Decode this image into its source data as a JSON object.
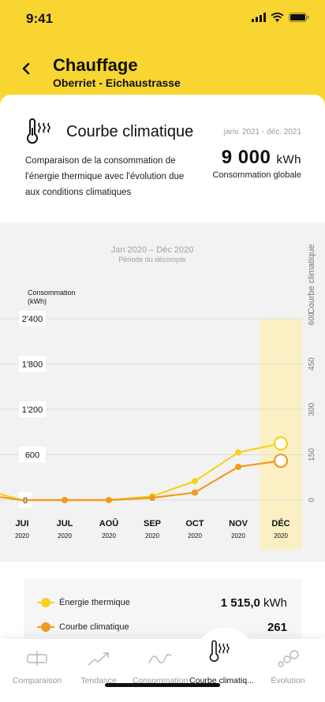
{
  "status": {
    "time": "9:41"
  },
  "header": {
    "title": "Chauffage",
    "subtitle": "Oberriet - Eichaustrasse"
  },
  "card": {
    "title": "Courbe climatique",
    "period": "janv. 2021 - déc. 2021",
    "description": "Comparaison de la consommation de l'énergie thermique avec l'évolution due aux conditions climatiques",
    "total_value": "9 000",
    "total_unit": "kWh",
    "total_label": "Consommation globale"
  },
  "chart_data": {
    "type": "line",
    "title": "Jan 2020 – Déc 2020",
    "subtitle": "Période du décompte",
    "ylabel_left": "Consommation\n(kWh)",
    "ylabel_right": "Courbe climatique",
    "left_ticks": [
      "2'400",
      "1'800",
      "1'200",
      "600",
      "0"
    ],
    "right_ticks": [
      "600",
      "450",
      "300",
      "150",
      "0"
    ],
    "ylim_left": [
      0,
      2400
    ],
    "ylim_right": [
      0,
      600
    ],
    "categories": [
      {
        "month": "JUI",
        "year": "2020"
      },
      {
        "month": "JUL",
        "year": "2020"
      },
      {
        "month": "AOÛ",
        "year": "2020"
      },
      {
        "month": "SEP",
        "year": "2020"
      },
      {
        "month": "OCT",
        "year": "2020"
      },
      {
        "month": "NOV",
        "year": "2020"
      },
      {
        "month": "DÉC",
        "year": "2020"
      }
    ],
    "highlight_index": 6,
    "series": [
      {
        "name": "Énergie thermique",
        "color": "#F7D21F",
        "axis": "left",
        "prev": 80,
        "values": [
          0,
          0,
          0,
          50,
          250,
          630,
          750
        ]
      },
      {
        "name": "Courbe climatique",
        "color": "#F29A1C",
        "axis": "left",
        "prev": 40,
        "values": [
          0,
          0,
          0,
          30,
          100,
          440,
          520
        ]
      }
    ]
  },
  "legend": [
    {
      "name": "Énergie thermique",
      "value": "1 515,0",
      "unit": "kWh",
      "color": "#F7D21F"
    },
    {
      "name": "Courbe climatique",
      "value": "261",
      "unit": "",
      "color": "#F29A1C"
    }
  ],
  "tabs": [
    {
      "label": "Comparaison",
      "icon": "comparison-icon"
    },
    {
      "label": "Tendance",
      "icon": "trend-icon"
    },
    {
      "label": "Consommation",
      "icon": "consumption-icon"
    },
    {
      "label": "Courbe climatiq...",
      "icon": "thermometer-icon"
    },
    {
      "label": "Évolution",
      "icon": "evolution-icon"
    }
  ]
}
